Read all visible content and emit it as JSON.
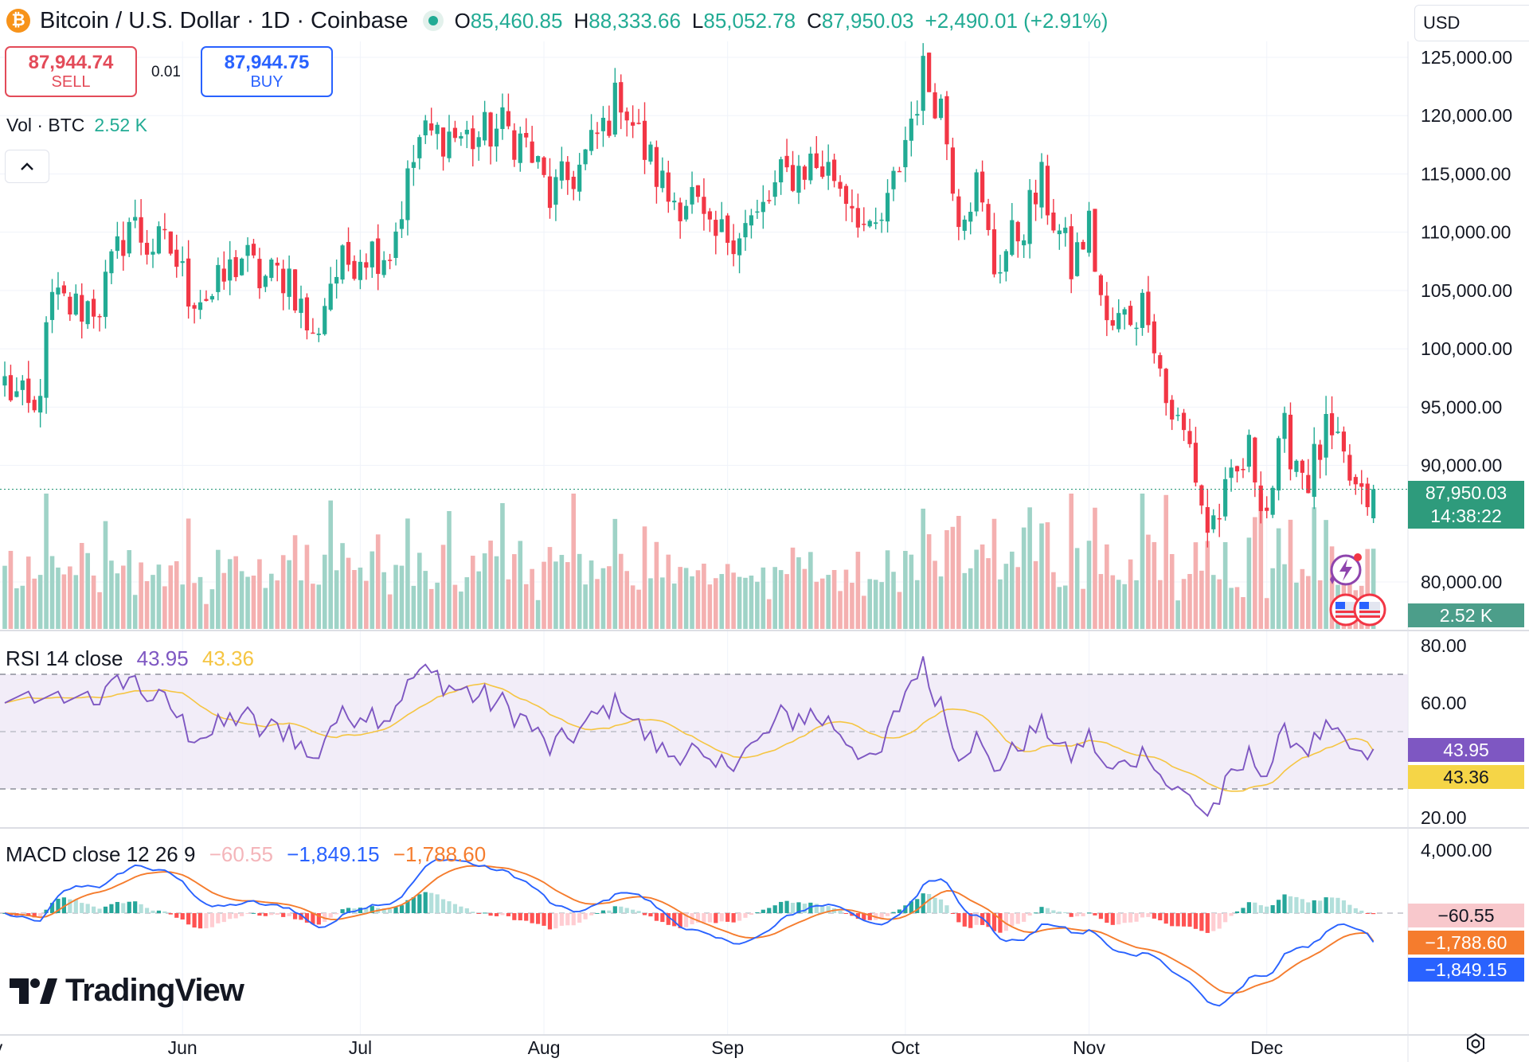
{
  "header": {
    "title": "Bitcoin / U.S. Dollar · 1D · Coinbase",
    "logo_glyph": "₿",
    "open_label": "O",
    "open": "85,460.85",
    "high_label": "H",
    "high": "88,333.66",
    "low_label": "L",
    "low": "85,052.78",
    "close_label": "C",
    "close": "87,950.03",
    "change": "+2,490.01 (+2.91%)"
  },
  "currency": "USD",
  "trade": {
    "sell_price": "87,944.74",
    "sell_label": "SELL",
    "spread": "0.01",
    "buy_price": "87,944.75",
    "buy_label": "BUY"
  },
  "volume_legend": {
    "label": "Vol · BTC",
    "value": "2.52 K"
  },
  "rsi_legend": {
    "label": "RSI 14 close",
    "value": "43.95",
    "ma": "43.36"
  },
  "macd_legend": {
    "label": "MACD close 12 26 9",
    "hist": "−60.55",
    "macd": "−1,849.15",
    "signal": "−1,788.60"
  },
  "price_tags": {
    "last_price": "87,950.03",
    "countdown": "14:38:22",
    "volume": "2.52 K",
    "rsi": "43.95",
    "rsi_ma": "43.36",
    "hist": "−60.55",
    "signal": "−1,788.60",
    "macd": "−1,849.15"
  },
  "branding": {
    "wordmark": "TradingView"
  },
  "colors": {
    "up": "#22ab94",
    "down": "#f23645",
    "rsi": "#7e57c2",
    "rsi_ma": "#f5c542",
    "macd": "#2962ff",
    "signal": "#f57c2d"
  },
  "chart_data": {
    "type": "candlestick",
    "title": "Bitcoin / U.S. Dollar · 1D · Coinbase",
    "y_axis": {
      "ticks": [
        125000,
        120000,
        115000,
        110000,
        105000,
        100000,
        95000,
        90000,
        80000
      ],
      "tick_labels": [
        "125,000.00",
        "120,000.00",
        "115,000.00",
        "110,000.00",
        "105,000.00",
        "100,000.00",
        "95,000.00",
        "90,000.00",
        "80,000.00"
      ],
      "ylim": [
        80000,
        125000
      ]
    },
    "x_axis": {
      "labels": [
        "ay",
        "Jun",
        "Jul",
        "Aug",
        "Sep",
        "Oct",
        "Nov",
        "Dec"
      ],
      "label_day_index": [
        -2,
        30,
        60,
        91,
        122,
        152,
        183,
        213
      ]
    },
    "anchors": [
      {
        "d": 0,
        "c": 97000
      },
      {
        "d": 5,
        "c": 94000
      },
      {
        "d": 8,
        "c": 104000
      },
      {
        "d": 12,
        "c": 103500
      },
      {
        "d": 16,
        "c": 104000
      },
      {
        "d": 21,
        "c": 111000
      },
      {
        "d": 24,
        "c": 109000
      },
      {
        "d": 28,
        "c": 108500
      },
      {
        "d": 31,
        "c": 105000
      },
      {
        "d": 35,
        "c": 104500
      },
      {
        "d": 40,
        "c": 108000
      },
      {
        "d": 43,
        "c": 106000
      },
      {
        "d": 48,
        "c": 106500
      },
      {
        "d": 52,
        "c": 100500
      },
      {
        "d": 55,
        "c": 106000
      },
      {
        "d": 60,
        "c": 108500
      },
      {
        "d": 65,
        "c": 108500
      },
      {
        "d": 70,
        "c": 118000
      },
      {
        "d": 74,
        "c": 118500
      },
      {
        "d": 79,
        "c": 118000
      },
      {
        "d": 84,
        "c": 119000
      },
      {
        "d": 88,
        "c": 117500
      },
      {
        "d": 92,
        "c": 113000
      },
      {
        "d": 97,
        "c": 115500
      },
      {
        "d": 101,
        "c": 119000
      },
      {
        "d": 104,
        "c": 122000
      },
      {
        "d": 107,
        "c": 118000
      },
      {
        "d": 112,
        "c": 113000
      },
      {
        "d": 116,
        "c": 113000
      },
      {
        "d": 119,
        "c": 109000
      },
      {
        "d": 124,
        "c": 110500
      },
      {
        "d": 127,
        "c": 111000
      },
      {
        "d": 131,
        "c": 114500
      },
      {
        "d": 136,
        "c": 116000
      },
      {
        "d": 140,
        "c": 115000
      },
      {
        "d": 144,
        "c": 112000
      },
      {
        "d": 146,
        "c": 109000
      },
      {
        "d": 149,
        "c": 112000
      },
      {
        "d": 152,
        "c": 118000
      },
      {
        "d": 155,
        "c": 123500
      },
      {
        "d": 158,
        "c": 121000
      },
      {
        "d": 161,
        "c": 112000
      },
      {
        "d": 164,
        "c": 114000
      },
      {
        "d": 167,
        "c": 107000
      },
      {
        "d": 171,
        "c": 110000
      },
      {
        "d": 175,
        "c": 114000
      },
      {
        "d": 180,
        "c": 107000
      },
      {
        "d": 183,
        "c": 110500
      },
      {
        "d": 186,
        "c": 101500
      },
      {
        "d": 190,
        "c": 103000
      },
      {
        "d": 193,
        "c": 104000
      },
      {
        "d": 196,
        "c": 95500
      },
      {
        "d": 200,
        "c": 91500
      },
      {
        "d": 203,
        "c": 84500
      },
      {
        "d": 206,
        "c": 87000
      },
      {
        "d": 210,
        "c": 91000
      },
      {
        "d": 213,
        "c": 86500
      },
      {
        "d": 216,
        "c": 92500
      },
      {
        "d": 220,
        "c": 89000
      },
      {
        "d": 223,
        "c": 92500
      },
      {
        "d": 226,
        "c": 90000
      },
      {
        "d": 229,
        "c": 86500
      },
      {
        "d": 231,
        "c": 87950
      }
    ],
    "last": {
      "open": 85460.85,
      "high": 88333.66,
      "low": 85052.78,
      "close": 87950.03
    },
    "rsi": {
      "period": 14,
      "ma_period": 14,
      "levels": [
        70,
        50,
        30
      ],
      "ticks": [
        80,
        60,
        20
      ],
      "last": 43.95,
      "ma_last": 43.36
    },
    "macd": {
      "fast": 12,
      "slow": 26,
      "signal": 9,
      "ticks": [
        4000
      ],
      "macd_last": -1849.15,
      "signal_last": -1788.6,
      "hist_last": -60.55
    }
  }
}
